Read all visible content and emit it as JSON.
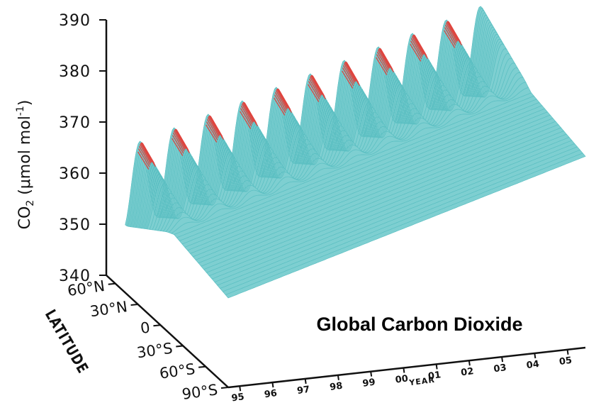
{
  "chart_data": {
    "type": "surface",
    "title": "Global Carbon Dioxide",
    "zlabel": {
      "main": "CO",
      "sub": "2",
      "rest": " (μmol mol",
      "sup": "-1",
      "close": ")"
    },
    "ylabel": "LATITUDE",
    "xlabel": "YEAR",
    "z_ticks": [
      "340",
      "350",
      "360",
      "370",
      "380",
      "390"
    ],
    "z_range": [
      340,
      390
    ],
    "latitude_ticks": [
      "60°N",
      "30°N",
      "0",
      "30°S",
      "60°S",
      "90°S"
    ],
    "latitude_range": [
      90,
      -90
    ],
    "year_ticks": [
      "95",
      "96",
      "97",
      "98",
      "99",
      "00",
      "01",
      "02",
      "03",
      "04",
      "05"
    ],
    "year_range": [
      1995,
      2005.5
    ],
    "colors": {
      "surface": "#7ecfd1",
      "mesh": "#5bbfc2",
      "highlight": "#e0443e",
      "axis": "#111111"
    },
    "highlight_latitude": "60°N",
    "series": {
      "trend_start_ppm": 360.5,
      "trend_ppm_per_year": 1.9,
      "north_seasonal_amplitude_ppm": 8,
      "south_offset_ppm": -3
    }
  }
}
